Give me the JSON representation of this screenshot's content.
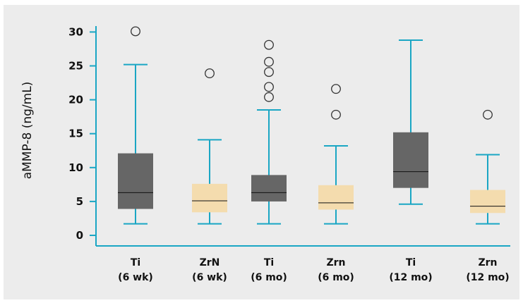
{
  "chart_data": {
    "type": "boxplot",
    "ylabel": "aMMP-8 (ng/mL)",
    "ylim": [
      0,
      30
    ],
    "yticks": [
      0,
      5,
      10,
      15,
      20,
      25,
      30
    ],
    "grid": false,
    "colors": {
      "axis": "#1aa6c4",
      "ti_box": "#666666",
      "zr_box": "#f4dcae",
      "median": "#111111",
      "outlier_stroke": "#333333",
      "panel_bg": "#ececec"
    },
    "groups": [
      {
        "label_line1": "Ti",
        "label_line2": "(6 wk)",
        "box_color": "ti_box",
        "min": 1.7,
        "q1": 3.9,
        "median": 6.3,
        "q3": 12.1,
        "max": 25.2,
        "outliers": [
          30.1
        ]
      },
      {
        "label_line1": "ZrN",
        "label_line2": "(6 wk)",
        "box_color": "zr_box",
        "min": 1.7,
        "q1": 3.4,
        "median": 5.1,
        "q3": 7.6,
        "max": 14.1,
        "outliers": [
          23.9
        ]
      },
      {
        "label_line1": "Ti",
        "label_line2": "(6 mo)",
        "box_color": "ti_box",
        "min": 1.7,
        "q1": 5.0,
        "median": 6.3,
        "q3": 8.9,
        "max": 18.5,
        "outliers": [
          20.4,
          21.9,
          24.1,
          25.6,
          28.1
        ]
      },
      {
        "label_line1": "Zrn",
        "label_line2": "(6 mo)",
        "box_color": "zr_box",
        "min": 1.7,
        "q1": 3.8,
        "median": 4.8,
        "q3": 7.4,
        "max": 13.2,
        "outliers": [
          17.8,
          21.6
        ]
      },
      {
        "label_line1": "Ti",
        "label_line2": "(12 mo)",
        "box_color": "ti_box",
        "min": 4.6,
        "q1": 7.0,
        "median": 9.4,
        "q3": 15.2,
        "max": 28.8,
        "outliers": []
      },
      {
        "label_line1": "Zrn",
        "label_line2": "(12 mo)",
        "box_color": "zr_box",
        "min": 1.7,
        "q1": 3.3,
        "median": 4.3,
        "q3": 6.7,
        "max": 11.9,
        "outliers": [
          17.8
        ]
      }
    ]
  }
}
